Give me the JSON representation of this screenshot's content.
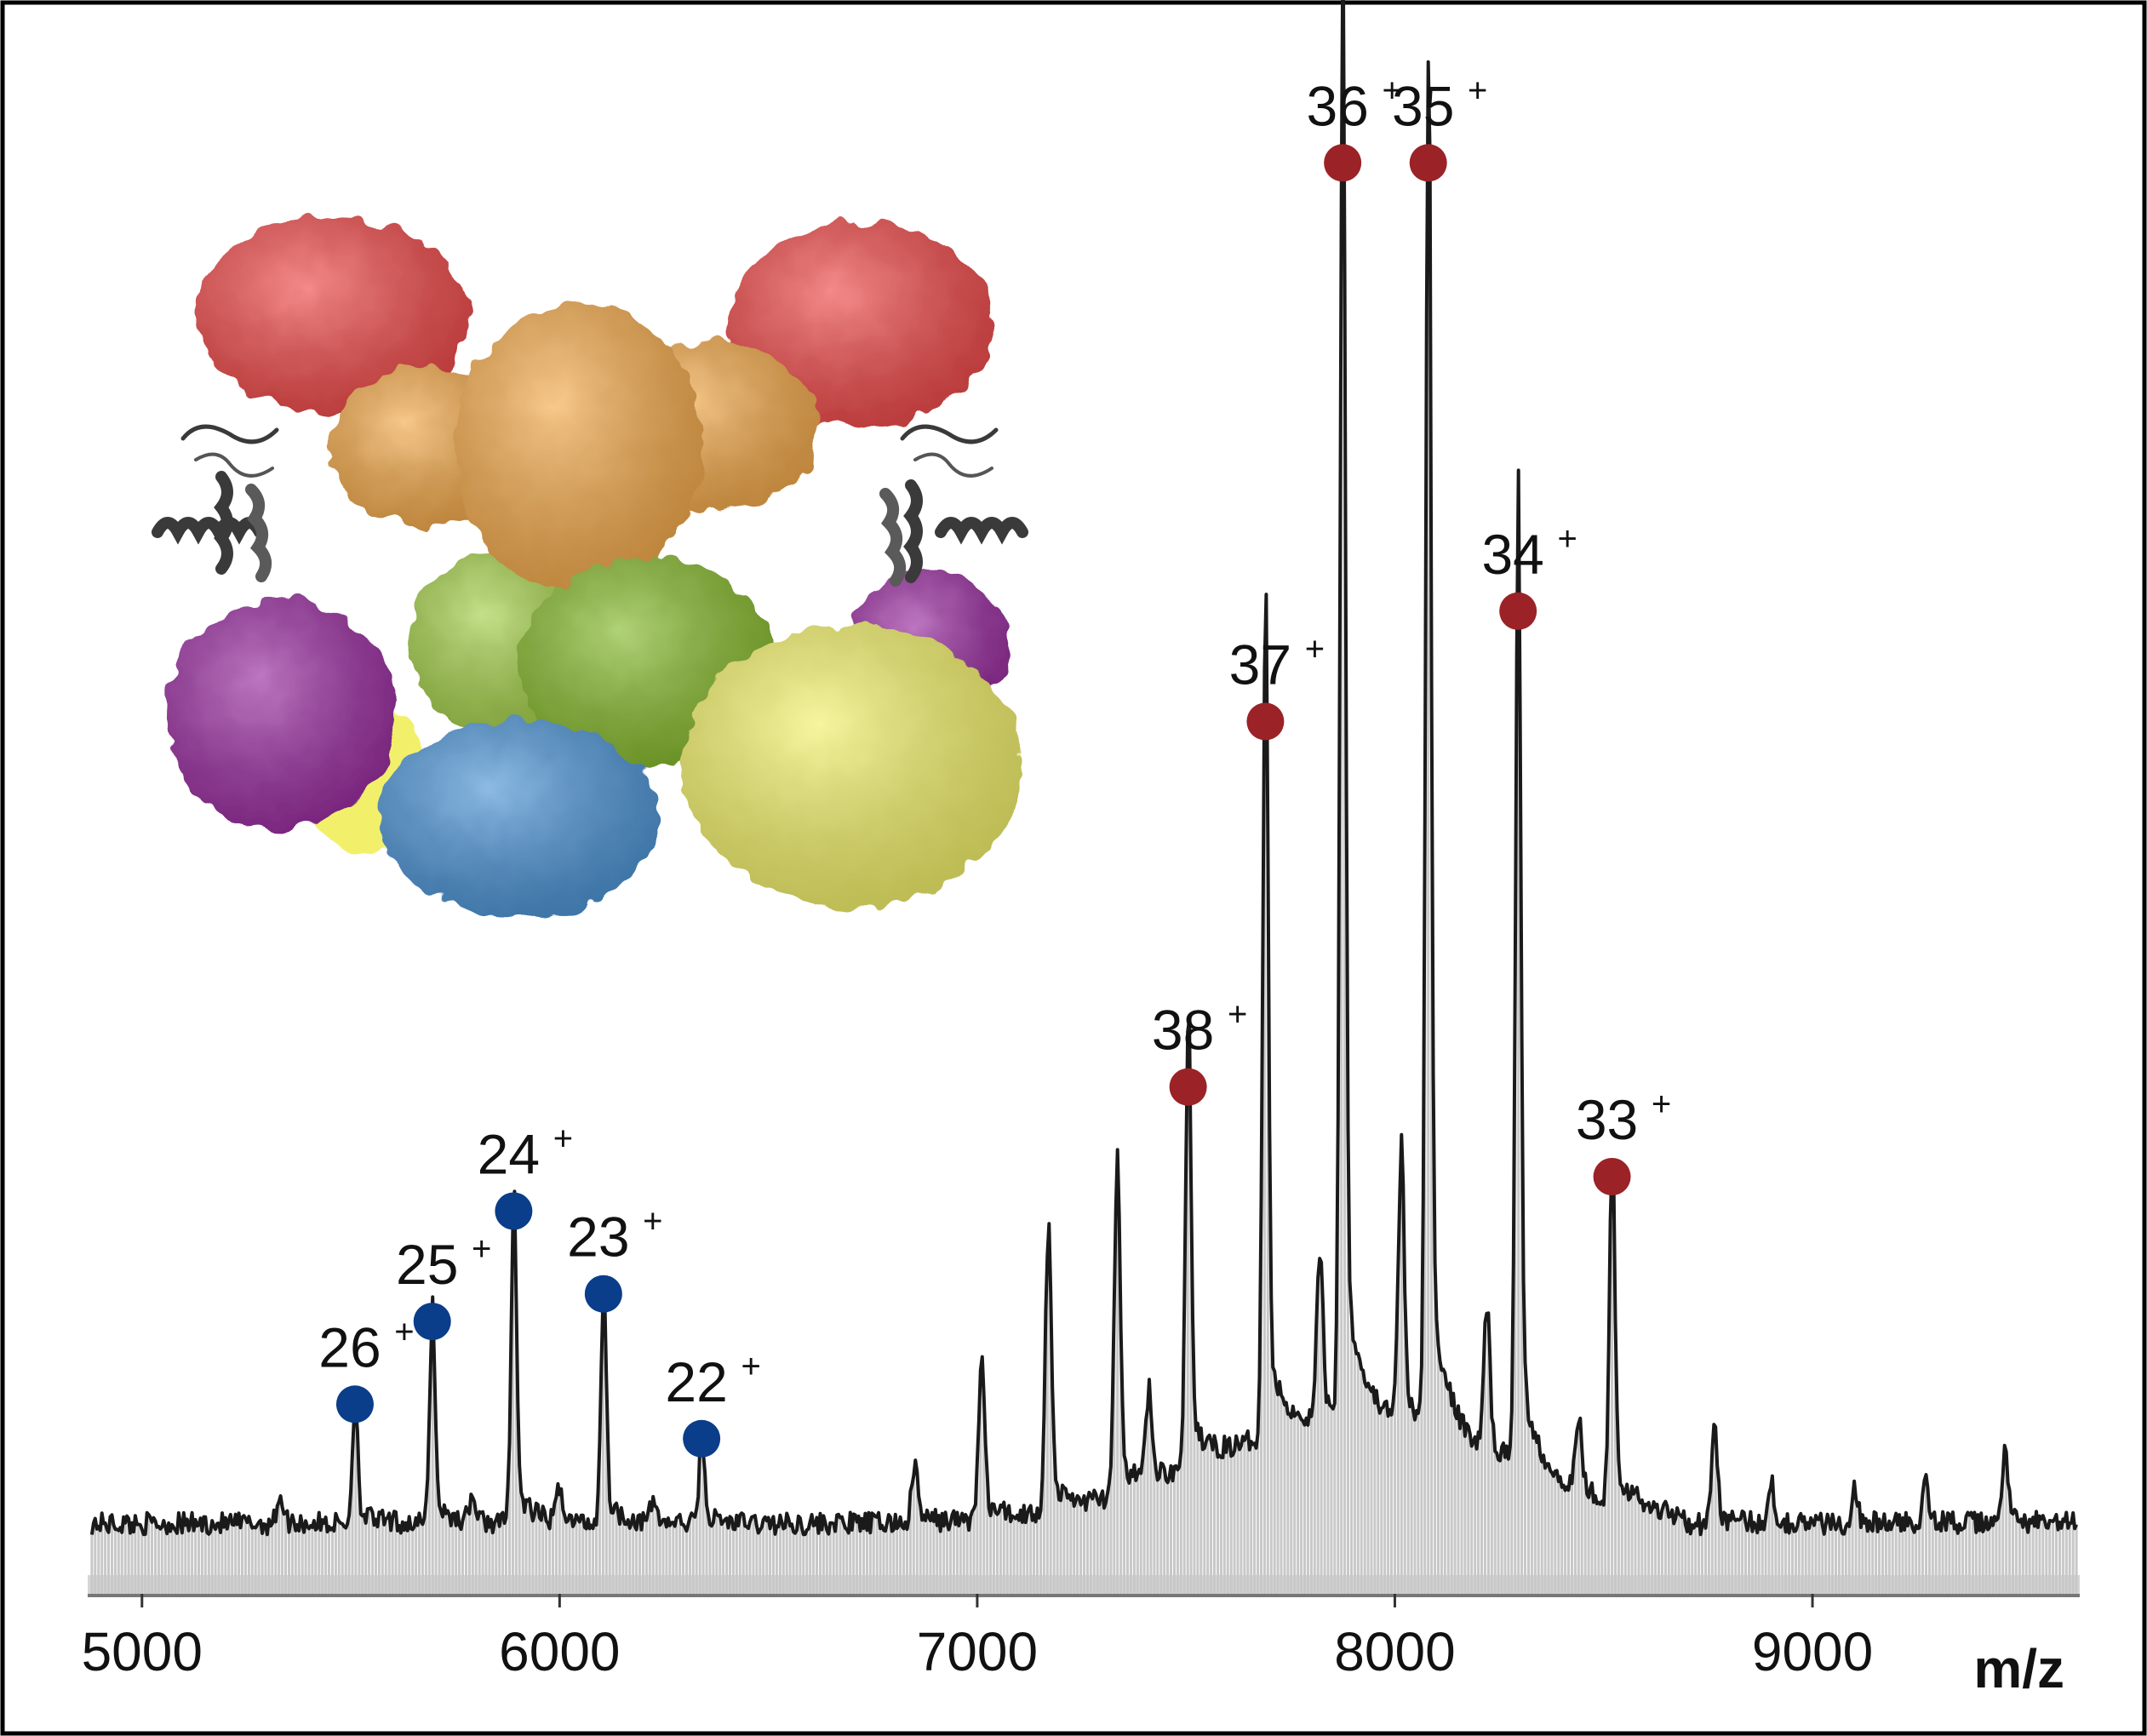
{
  "chart_data": {
    "type": "line",
    "xlabel": "m/z",
    "ylabel": "",
    "xlim": [
      4870,
      9640
    ],
    "ylim": [
      0,
      100
    ],
    "x_ticks": [
      5000,
      6000,
      7000,
      8000,
      9000
    ],
    "x_tick_labels": [
      "5000",
      "6000",
      "7000",
      "8000",
      "9000"
    ],
    "grid": false,
    "legend": "none",
    "series": [
      {
        "charge_state_series": "blue",
        "color": "#0a3d8a",
        "peaks": [
          {
            "label": "26",
            "mz": 5510,
            "intensity": 8.5
          },
          {
            "label": "25",
            "mz": 5695,
            "intensity": 14.5
          },
          {
            "label": "24",
            "mz": 5890,
            "intensity": 22.5
          },
          {
            "label": "23",
            "mz": 6105,
            "intensity": 16.5
          },
          {
            "label": "22",
            "mz": 6340,
            "intensity": 6.0
          }
        ]
      },
      {
        "charge_state_series": "red",
        "color": "#9b2226",
        "peaks": [
          {
            "label": "38",
            "mz": 7505,
            "intensity": 31.5
          },
          {
            "label": "37",
            "mz": 7690,
            "intensity": 58.0
          },
          {
            "label": "36",
            "mz": 7875,
            "intensity": 98.5
          },
          {
            "label": "35",
            "mz": 8080,
            "intensity": 98.5
          },
          {
            "label": "34",
            "mz": 8295,
            "intensity": 66.0
          },
          {
            "label": "33",
            "mz": 8520,
            "intensity": 25.0
          }
        ]
      }
    ],
    "unlabeled_peaks": [
      {
        "mz": 5330,
        "intensity": 2.0
      },
      {
        "mz": 5790,
        "intensity": 1.8
      },
      {
        "mz": 6000,
        "intensity": 2.5
      },
      {
        "mz": 6225,
        "intensity": 1.5
      },
      {
        "mz": 6850,
        "intensity": 4.0
      },
      {
        "mz": 7010,
        "intensity": 11.0
      },
      {
        "mz": 7170,
        "intensity": 20.0
      },
      {
        "mz": 7335,
        "intensity": 22.0
      },
      {
        "mz": 7410,
        "intensity": 6.0
      },
      {
        "mz": 7820,
        "intensity": 12.0
      },
      {
        "mz": 8015,
        "intensity": 18.5
      },
      {
        "mz": 8220,
        "intensity": 10.0
      },
      {
        "mz": 8440,
        "intensity": 5.0
      },
      {
        "mz": 8765,
        "intensity": 6.5
      },
      {
        "mz": 8900,
        "intensity": 3.0
      },
      {
        "mz": 9100,
        "intensity": 2.5
      },
      {
        "mz": 9270,
        "intensity": 3.5
      },
      {
        "mz": 9460,
        "intensity": 5.0
      }
    ],
    "inset": {
      "type": "protein-complex-illustration",
      "subunit_colors": [
        "#ef4b4b",
        "#f3aa4c",
        "#86b92d",
        "#9a2ea0",
        "#4e95d6",
        "#f2f06a",
        "#3a3a3a"
      ]
    }
  }
}
